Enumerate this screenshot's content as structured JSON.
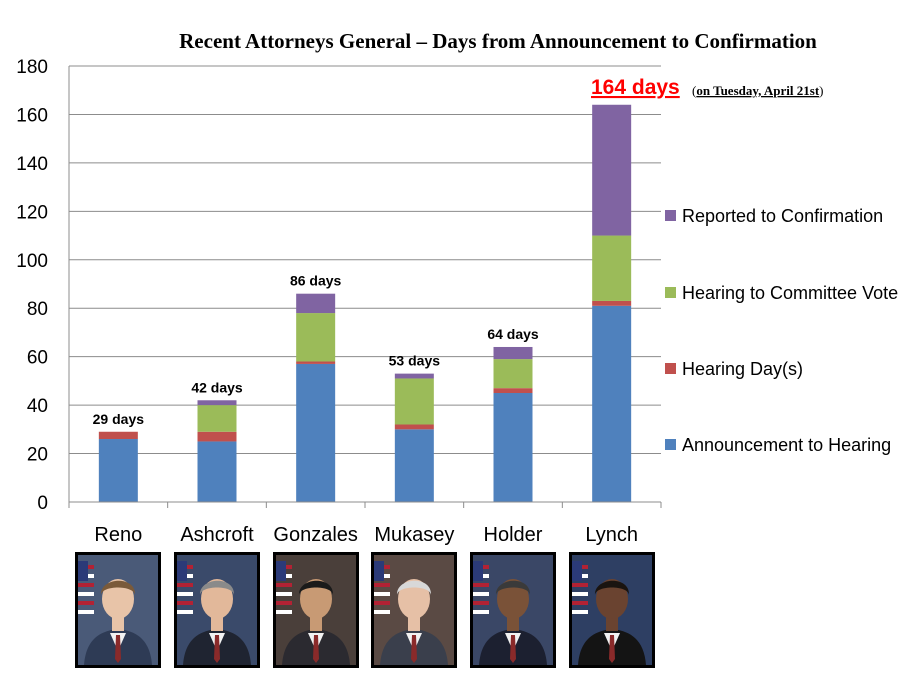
{
  "chart_data": {
    "type": "bar",
    "stacked": true,
    "title": "Recent Attorneys General – Days from Announcement to Confirmation",
    "categories": [
      "Reno",
      "Ashcroft",
      "Gonzales",
      "Mukasey",
      "Holder",
      "Lynch"
    ],
    "series": [
      {
        "name": "Announcement to Hearing",
        "color": "#4f81bd",
        "values": [
          26,
          25,
          57,
          30,
          45,
          81
        ]
      },
      {
        "name": "Hearing Day(s)",
        "color": "#c0504d",
        "values": [
          3,
          4,
          1,
          2,
          2,
          2
        ]
      },
      {
        "name": "Hearing to Committee Vote",
        "color": "#9bbb59",
        "values": [
          0,
          11,
          20,
          19,
          12,
          27
        ]
      },
      {
        "name": "Reported to Confirmation",
        "color": "#8064a2",
        "values": [
          0,
          2,
          8,
          2,
          5,
          54
        ]
      }
    ],
    "data_labels": [
      "29 days",
      "42 days",
      "86 days",
      "53 days",
      "64 days",
      ""
    ],
    "highlight": {
      "days_text": "164 days",
      "note_open": "(",
      "note_date": "on Tuesday, April 21st",
      "note_close": ")"
    },
    "ylim": [
      0,
      180
    ],
    "yticks": [
      0,
      20,
      40,
      60,
      80,
      100,
      120,
      140,
      160,
      180
    ],
    "grid": true,
    "legend_position": "right"
  },
  "portraits": [
    {
      "name": "Reno",
      "bg": "#4a5a78",
      "suit": "#2e3b55",
      "skin": "#e8c4a8",
      "hair": "#7a5a3a"
    },
    {
      "name": "Ashcroft",
      "bg": "#3a4a6a",
      "suit": "#1f2431",
      "skin": "#e2b89a",
      "hair": "#8a8a8a"
    },
    {
      "name": "Gonzales",
      "bg": "#4a3f3a",
      "suit": "#2b2a30",
      "skin": "#c89a74",
      "hair": "#1a1a1a"
    },
    {
      "name": "Mukasey",
      "bg": "#5a4a44",
      "suit": "#3a3f4c",
      "skin": "#e6c0a6",
      "hair": "#d8d8d8"
    },
    {
      "name": "Holder",
      "bg": "#3a4766",
      "suit": "#1c2030",
      "skin": "#7a5238",
      "hair": "#3a3a3a"
    },
    {
      "name": "Lynch",
      "bg": "#2e3f63",
      "suit": "#141414",
      "skin": "#6a4330",
      "hair": "#1a1410"
    }
  ]
}
